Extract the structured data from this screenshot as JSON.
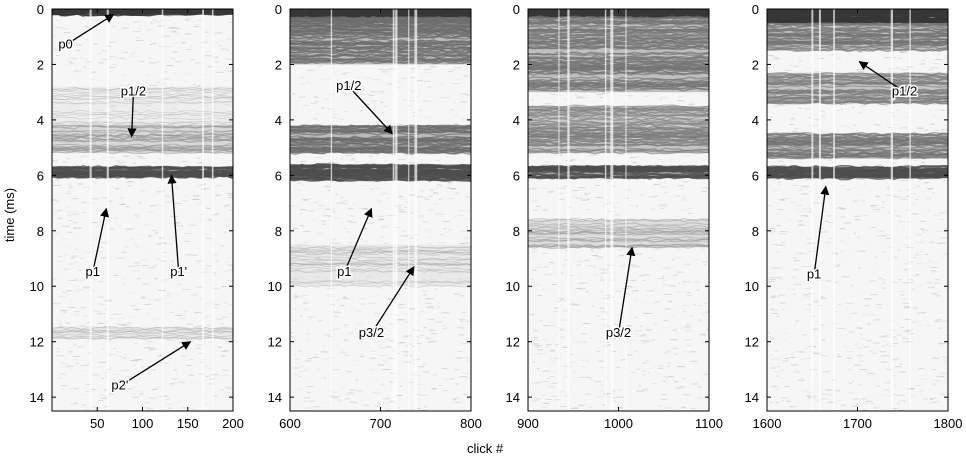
{
  "chart_data": {
    "type": "heatmap",
    "ylabel": "time (ms)",
    "xlabel": "click #",
    "yaxis": {
      "range": [
        0,
        14.5
      ],
      "ticks": [
        0,
        2,
        4,
        6,
        8,
        10,
        12,
        14
      ],
      "direction": "down"
    },
    "colormap": "grayscale",
    "panels": [
      {
        "id": "panel-1",
        "xlim": [
          0,
          200
        ],
        "xticks": [
          50,
          100,
          150,
          200
        ],
        "bands": [
          {
            "t0": 0,
            "t1": 0.2,
            "darkness": 0.9
          },
          {
            "t0": 5.7,
            "t1": 6.05,
            "darkness": 0.75
          },
          {
            "t0": 4.2,
            "t1": 5.2,
            "darkness": 0.3
          },
          {
            "t0": 2.8,
            "t1": 4.2,
            "darkness": 0.12
          },
          {
            "t0": 11.5,
            "t1": 11.9,
            "darkness": 0.15
          }
        ],
        "annotations": [
          {
            "label": "p0",
            "text_x": 15,
            "text_t": 1.3,
            "tip_x": 68,
            "tip_t": 0.2
          },
          {
            "label": "p1/2",
            "text_x": 90,
            "text_t": 3.0,
            "tip_x": 88,
            "tip_t": 4.6
          },
          {
            "label": "p1",
            "text_x": 45,
            "text_t": 9.5,
            "tip_x": 60,
            "tip_t": 7.2
          },
          {
            "label": "p1'",
            "text_x": 140,
            "text_t": 9.5,
            "tip_x": 132,
            "tip_t": 6.0
          },
          {
            "label": "p2'",
            "text_x": 75,
            "text_t": 13.6,
            "tip_x": 153,
            "tip_t": 12.0
          }
        ]
      },
      {
        "id": "panel-2",
        "xlim": [
          600,
          800
        ],
        "xticks": [
          600,
          700,
          800
        ],
        "bands": [
          {
            "t0": 0,
            "t1": 0.3,
            "darkness": 0.9
          },
          {
            "t0": 0.3,
            "t1": 2.0,
            "darkness": 0.55
          },
          {
            "t0": 4.2,
            "t1": 5.2,
            "darkness": 0.55
          },
          {
            "t0": 5.6,
            "t1": 6.2,
            "darkness": 0.75
          },
          {
            "t0": 8.5,
            "t1": 10.0,
            "darkness": 0.15
          }
        ],
        "annotations": [
          {
            "label": "p1/2",
            "text_x": 665,
            "text_t": 2.8,
            "tip_x": 713,
            "tip_t": 4.5
          },
          {
            "label": "p1",
            "text_x": 660,
            "text_t": 9.5,
            "tip_x": 690,
            "tip_t": 7.2
          },
          {
            "label": "p3/2",
            "text_x": 690,
            "text_t": 11.7,
            "tip_x": 737,
            "tip_t": 9.3
          }
        ]
      },
      {
        "id": "panel-3",
        "xlim": [
          900,
          1100
        ],
        "xticks": [
          900,
          1000,
          1100
        ],
        "bands": [
          {
            "t0": 0,
            "t1": 0.3,
            "darkness": 0.9
          },
          {
            "t0": 0.3,
            "t1": 3.0,
            "darkness": 0.5
          },
          {
            "t0": 3.5,
            "t1": 4.3,
            "darkness": 0.4
          },
          {
            "t0": 4.3,
            "t1": 5.2,
            "darkness": 0.45
          },
          {
            "t0": 5.7,
            "t1": 6.1,
            "darkness": 0.75
          },
          {
            "t0": 7.6,
            "t1": 8.6,
            "darkness": 0.25
          }
        ],
        "annotations": [
          {
            "label": "p3/2",
            "text_x": 1000,
            "text_t": 11.7,
            "tip_x": 1015,
            "tip_t": 8.6
          }
        ]
      },
      {
        "id": "panel-4",
        "xlim": [
          1600,
          1800
        ],
        "xticks": [
          1600,
          1700,
          1800
        ],
        "bands": [
          {
            "t0": 0,
            "t1": 0.5,
            "darkness": 0.9
          },
          {
            "t0": 0.5,
            "t1": 1.5,
            "darkness": 0.5
          },
          {
            "t0": 2.3,
            "t1": 3.4,
            "darkness": 0.45
          },
          {
            "t0": 4.5,
            "t1": 5.4,
            "darkness": 0.5
          },
          {
            "t0": 5.7,
            "t1": 6.1,
            "darkness": 0.75
          }
        ],
        "annotations": [
          {
            "label": "p1/2",
            "text_x": 1752,
            "text_t": 3.0,
            "tip_x": 1702,
            "tip_t": 1.9
          },
          {
            "label": "p1",
            "text_x": 1652,
            "text_t": 9.6,
            "tip_x": 1665,
            "tip_t": 6.4
          }
        ]
      }
    ]
  }
}
